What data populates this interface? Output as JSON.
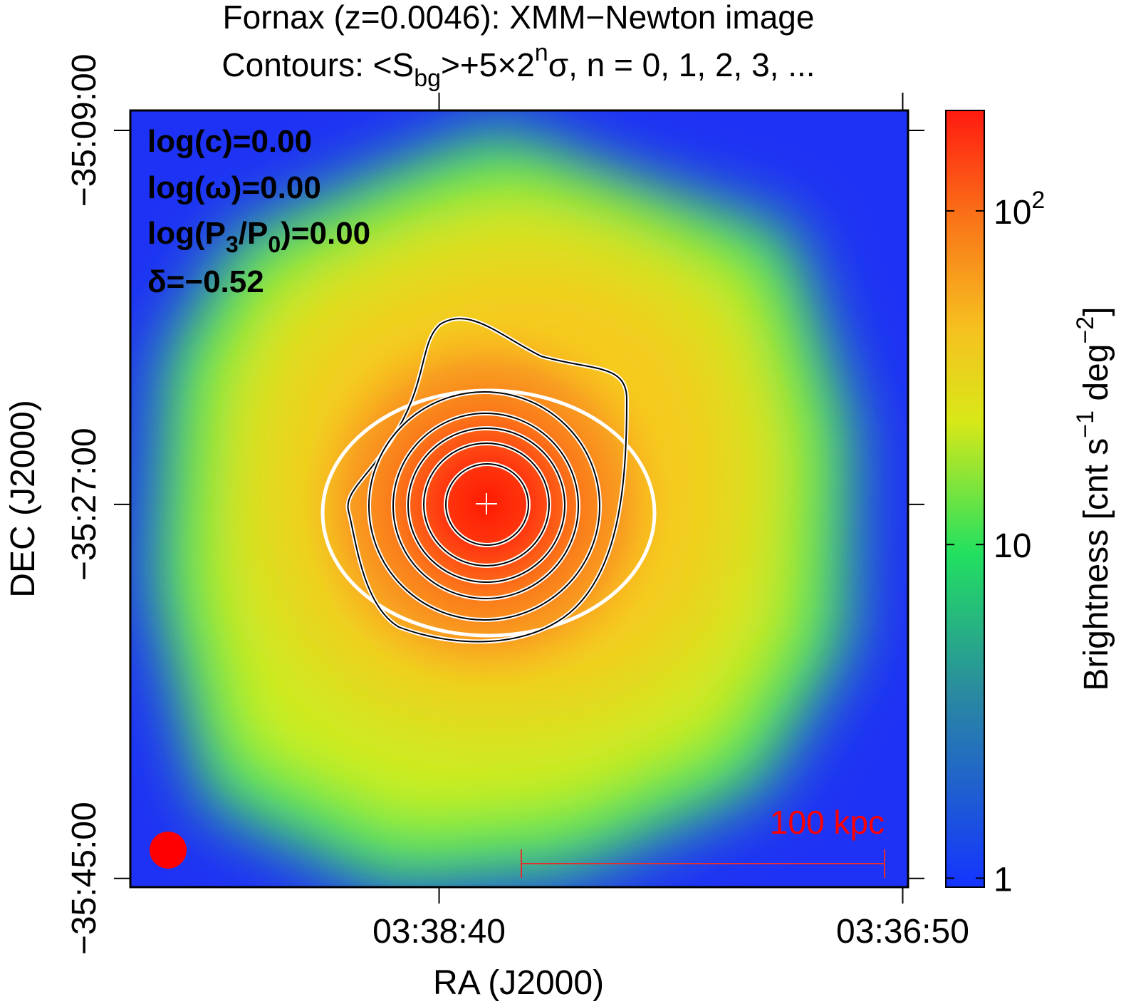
{
  "chart_data": {
    "type": "image",
    "title": "Fornax (z=0.0046): XMM−Newton image",
    "subtitle_parts": [
      "Contours: <S",
      "bg",
      ">+5×2",
      "n",
      "σ, n = 0, 1, 2, 3, ..."
    ],
    "annotations": [
      "log(c)=0.00",
      "log(ω)=0.00",
      [
        "log(P",
        "3",
        "/P",
        "0",
        ")=0.00"
      ],
      "δ=−0.52"
    ],
    "scale_bar": "100 kpc",
    "x_label": "RA (J2000)",
    "y_label": "DEC (J2000)",
    "xlim": [
      54.972,
      54.203
    ],
    "xticks": [
      {
        "value": 54.6667,
        "label": "03:38:40"
      },
      {
        "value": 54.2083,
        "label": "03:36:50"
      }
    ],
    "ylim": [
      -35.757,
      -35.134
    ],
    "yticks": [
      {
        "value": -35.15,
        "label": "−35:09:00"
      },
      {
        "value": -35.45,
        "label": "−35:27:00"
      },
      {
        "value": -35.75,
        "label": "−35:45:00"
      }
    ],
    "colorbar": {
      "label_parts": [
        "Brightness [cnt s",
        "−1",
        " deg",
        "−2",
        "]"
      ],
      "log": true,
      "lim": [
        0.94,
        200
      ],
      "ticks": [
        1,
        10,
        {
          "value": 100,
          "label": "10",
          "exponent": "2"
        }
      ]
    }
  }
}
